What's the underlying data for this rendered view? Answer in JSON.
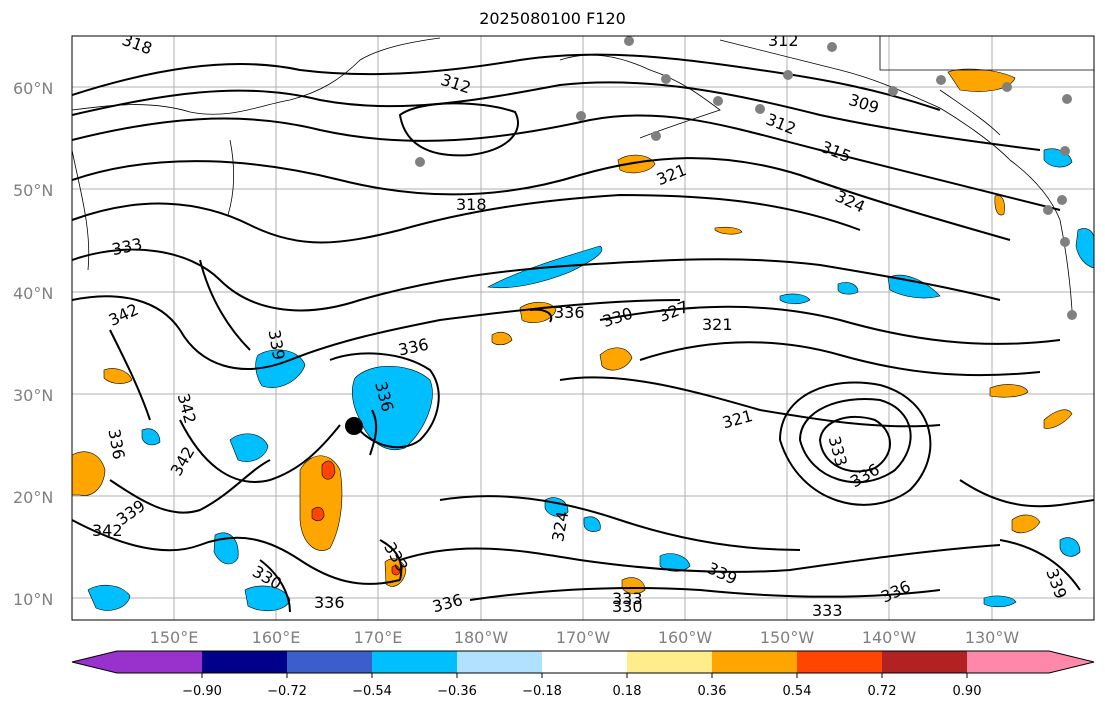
{
  "title": "2025080100 F120",
  "lat_labels": [
    "60°N",
    "50°N",
    "40°N",
    "30°N",
    "20°N",
    "10°N"
  ],
  "lon_labels": [
    "150°E",
    "160°E",
    "170°E",
    "180°W",
    "170°W",
    "160°W",
    "150°W",
    "140°W",
    "130°W"
  ],
  "colorbar": {
    "colors": [
      "#9932cc",
      "#00008b",
      "#3a5fcd",
      "#00bfff",
      "#b0e2ff",
      "#ffffff",
      "#ffec8b",
      "#ffa500",
      "#ff4500",
      "#b22222",
      "#ff88aa"
    ],
    "tick_labels": [
      "−0.90",
      "−0.72",
      "−0.54",
      "−0.36",
      "−0.18",
      "0.18",
      "0.36",
      "0.54",
      "0.72",
      "0.90"
    ]
  },
  "contour_labels": [
    "318",
    "312",
    "309",
    "312",
    "315",
    "321",
    "324",
    "318",
    "333",
    "342",
    "339",
    "336",
    "330",
    "327",
    "321",
    "336",
    "336",
    "321",
    "342",
    "342",
    "336",
    "339",
    "342",
    "324",
    "333",
    "336",
    "330",
    "336",
    "336",
    "339",
    "330",
    "333",
    "333",
    "336",
    "339",
    "312",
    "333"
  ]
}
